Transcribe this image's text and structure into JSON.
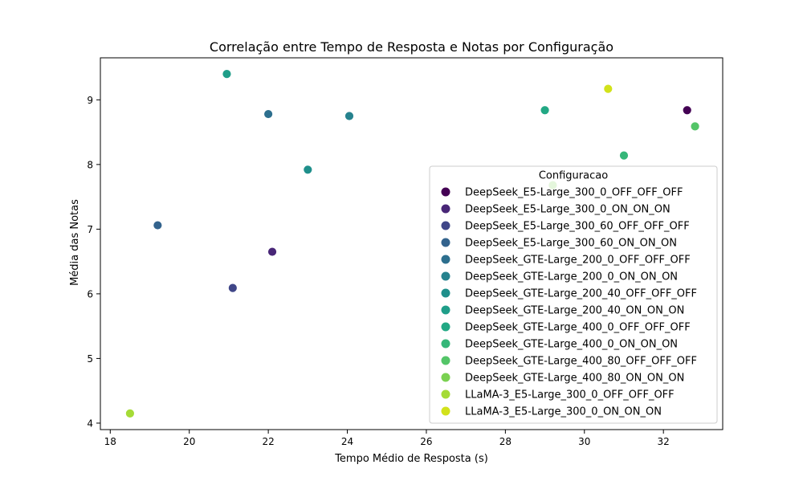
{
  "chart_data": {
    "type": "scatter",
    "title": "Correlação entre Tempo de Resposta e Notas por Configuração",
    "xlabel": "Tempo Médio de Resposta (s)",
    "ylabel": "Média das Notas",
    "xlim": [
      17.75,
      33.5
    ],
    "ylim": [
      3.9,
      9.65
    ],
    "xticks": [
      18,
      20,
      22,
      24,
      26,
      28,
      30,
      32
    ],
    "yticks": [
      4,
      5,
      6,
      7,
      8,
      9
    ],
    "grid": false,
    "legend": {
      "title": "Configuracao",
      "position": "lower-right"
    },
    "series": [
      {
        "name": "DeepSeek_E5-Large_300_0_OFF_OFF_OFF",
        "color": "#440154",
        "points": [
          [
            32.6,
            8.84
          ]
        ]
      },
      {
        "name": "DeepSeek_E5-Large_300_0_ON_ON_ON",
        "color": "#482677",
        "points": [
          [
            22.1,
            6.65
          ]
        ]
      },
      {
        "name": "DeepSeek_E5-Large_300_60_OFF_OFF_OFF",
        "color": "#404688",
        "points": [
          [
            21.1,
            6.09
          ]
        ]
      },
      {
        "name": "DeepSeek_E5-Large_300_60_ON_ON_ON",
        "color": "#33638d",
        "points": [
          [
            19.2,
            7.06
          ]
        ]
      },
      {
        "name": "DeepSeek_GTE-Large_200_0_OFF_OFF_OFF",
        "color": "#2d6f8e",
        "points": [
          [
            22.0,
            8.78
          ]
        ]
      },
      {
        "name": "DeepSeek_GTE-Large_200_0_ON_ON_ON",
        "color": "#26828e",
        "points": [
          [
            24.05,
            8.75
          ]
        ]
      },
      {
        "name": "DeepSeek_GTE-Large_200_40_OFF_OFF_OFF",
        "color": "#1f8f8b",
        "points": [
          [
            23.0,
            7.92
          ]
        ]
      },
      {
        "name": "DeepSeek_GTE-Large_200_40_ON_ON_ON",
        "color": "#1f9e89",
        "points": [
          [
            20.95,
            9.4
          ]
        ]
      },
      {
        "name": "DeepSeek_GTE-Large_400_0_OFF_OFF_OFF",
        "color": "#22a884",
        "points": [
          [
            29.0,
            8.84
          ]
        ]
      },
      {
        "name": "DeepSeek_GTE-Large_400_0_ON_ON_ON",
        "color": "#35b779",
        "points": [
          [
            31.0,
            8.14
          ]
        ]
      },
      {
        "name": "DeepSeek_GTE-Large_400_80_OFF_OFF_OFF",
        "color": "#54c568",
        "points": [
          [
            32.8,
            8.59
          ]
        ]
      },
      {
        "name": "DeepSeek_GTE-Large_400_80_ON_ON_ON",
        "color": "#7ad151",
        "points": [
          [
            29.2,
            7.68
          ]
        ]
      },
      {
        "name": "LLaMA-3_E5-Large_300_0_OFF_OFF_OFF",
        "color": "#a5db36",
        "points": [
          [
            18.5,
            4.15
          ]
        ]
      },
      {
        "name": "LLaMA-3_E5-Large_300_0_ON_ON_ON",
        "color": "#d2e21b",
        "points": [
          [
            30.6,
            9.17
          ]
        ]
      }
    ]
  }
}
